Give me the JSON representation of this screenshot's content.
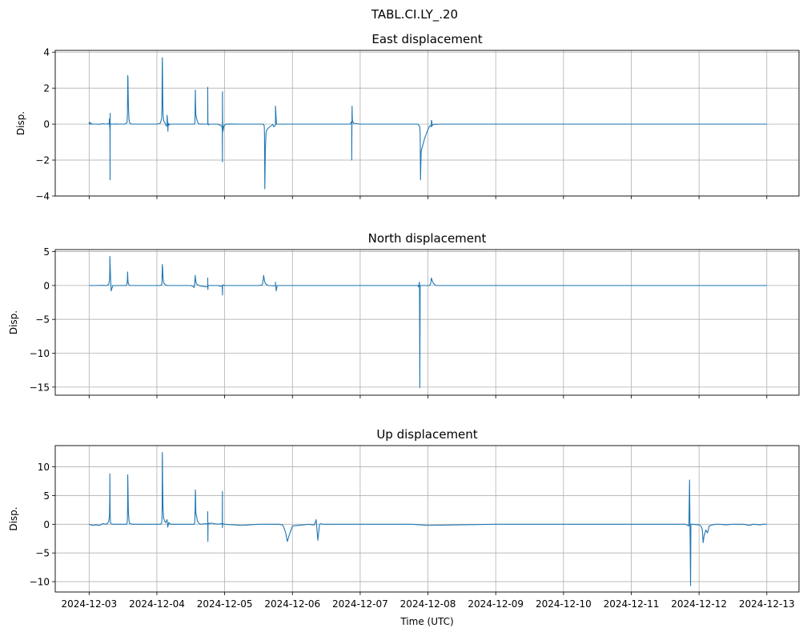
{
  "figure": {
    "suptitle": "TABL.CI.LY_.20"
  },
  "colors": {
    "line": "#1f77b4",
    "grid": "#b0b0b0",
    "axes": "#000000"
  },
  "chart_data": [
    {
      "type": "line",
      "title": "East displacement",
      "ylabel": "Disp.",
      "xlabel": "",
      "ylim": [
        -4,
        4.1
      ],
      "yticks": [
        -4,
        -2,
        0,
        2,
        4
      ],
      "ytick_labels": [
        "−4",
        "−2",
        "0",
        "2",
        "4"
      ],
      "grid": true,
      "series": [
        {
          "x": [
            0,
            0.003,
            0.012,
            0.022,
            0.036,
            0.04,
            0.05,
            0.06,
            0.062,
            0.065,
            0.068,
            0.07,
            0.08,
            0.09,
            0.1,
            0.2,
            0.3,
            0.4,
            0.5,
            0.55,
            0.59,
            0.6,
            0.605,
            0.612,
            0.615,
            0.618,
            0.62,
            0.622,
            0.625,
            0.628,
            0.632,
            0.64,
            0.65,
            0.7,
            0.8,
            0.9,
            1.0,
            1.05,
            1.1,
            1.12,
            1.13,
            1.135,
            1.14,
            1.145,
            1.15,
            1.16,
            1.175,
            1.19,
            1.21,
            1.25,
            1.3,
            1.5,
            1.8,
            2.0,
            2.1,
            2.14,
            2.15,
            2.155,
            2.16,
            2.165,
            2.17,
            2.18,
            2.2,
            2.22,
            2.25,
            2.27,
            2.3,
            2.3,
            2.31,
            2.32,
            2.325,
            2.33,
            2.34,
            2.36,
            2.38,
            2.4,
            2.5,
            3.0,
            3.1,
            3.12,
            3.125,
            3.13,
            3.135,
            3.14,
            3.15,
            3.2,
            3.25,
            3.3,
            3.4,
            3.45,
            3.5,
            3.5,
            3.505,
            3.51,
            3.52,
            3.55,
            3.6,
            3.8,
            3.85,
            3.87,
            3.88,
            3.9,
            3.92,
            3.93,
            3.935,
            3.935,
            3.94,
            3.95,
            3.98,
            4.0,
            4.05,
            4.1,
            4.5,
            5.0,
            5.1,
            5.15,
            5.16,
            5.17,
            5.175,
            5.18,
            5.185,
            5.19,
            5.2,
            5.22,
            5.25,
            5.3,
            5.4,
            5.42,
            5.45,
            5.5,
            5.5,
            5.53,
            5.6,
            6.0,
            6.5,
            6.8,
            7.0,
            7.5,
            7.7,
            7.75,
            7.75,
            7.76,
            7.77,
            7.8,
            8.0,
            8.5,
            9.0,
            9.6,
            9.7,
            9.72,
            9.75,
            9.76,
            9.77,
            9.78,
            9.8,
            9.9,
            10.0,
            10.05,
            10.08,
            10.1,
            10.1,
            10.11,
            10.12,
            10.13,
            10.15,
            10.18,
            10.2,
            10.22,
            10.25,
            10.3,
            10.35,
            10.4,
            10.5,
            10.6,
            10.8,
            11.0,
            11.5,
            12.0,
            12.5,
            13.0,
            13.5,
            14.0,
            14.5,
            15.0,
            15.5,
            16.0,
            17.0,
            18.0,
            18.5,
            19.0,
            19.5,
            19.6,
            19.7,
            19.8,
            19.85,
            19.9,
            19.95,
            20.0,
            20.0
          ],
          "y": [
            0,
            0.08,
            0.05,
            0.1,
            0.04,
            -0.02,
            0.03,
            0.05,
            0.02,
            0.01,
            0.02,
            0.01,
            0,
            0.01,
            0,
            0,
            -0.01,
            0.02,
            0,
            0.02,
            0,
            0.3,
            -0.1,
            -0.2,
            -0.4,
            -3.1,
            0.6,
            -0.3,
            0,
            -0.02,
            0,
            0.01,
            0,
            0,
            0.01,
            0,
            0,
            0,
            0.05,
            0.1,
            0.6,
            1.6,
            2.7,
            2.6,
            2,
            1,
            0.3,
            0.1,
            0.04,
            0,
            0,
            0,
            0,
            0,
            0.05,
            0.3,
            1,
            2.5,
            3.7,
            3.4,
            2,
            0.6,
            0.2,
            0.1,
            0.05,
            -0.1,
            -0.1,
            0.5,
            0.3,
            -0.1,
            -0.4,
            -0.1,
            0.05,
            -0.05,
            -0.02,
            0,
            0,
            0,
            0,
            0.05,
            0.3,
            1.2,
            1.9,
            1.3,
            0.5,
            0.1,
            0,
            0.01,
            0,
            0,
            0,
            2.05,
            0.2,
            0,
            -0.05,
            0,
            0,
            0,
            -0.05,
            -0.05,
            -0.08,
            -0.1,
            -0.15,
            -0.3,
            -2.1,
            1.8,
            0.3,
            -0.4,
            -0.1,
            -0.05,
            0,
            0.01,
            0,
            0,
            0,
            -0.02,
            -0.05,
            -0.15,
            -0.5,
            -2,
            -3.6,
            -3,
            -1.5,
            -0.5,
            -0.3,
            -0.2,
            -0.05,
            -0.02,
            -0.15,
            -0.08,
            1,
            0,
            0,
            0,
            0,
            0,
            0,
            0,
            0,
            0.15,
            -2,
            1,
            0.2,
            0.05,
            0,
            0,
            0,
            0,
            0,
            -0.05,
            -0.1,
            -0.2,
            -0.5,
            -3.1,
            -1.5,
            -0.8,
            -0.3,
            -0.1,
            -0.1,
            -0.15,
            0.2,
            0.2,
            -0.1,
            -0.05,
            -0.03,
            -0.02,
            0,
            0,
            -0.02,
            0,
            0,
            0,
            0,
            0,
            0,
            0,
            0,
            0,
            0,
            0,
            0,
            0,
            0,
            0,
            0,
            0,
            0,
            0,
            0,
            0,
            0,
            0,
            0,
            0,
            0,
            0,
            0,
            0,
            0
          ]
        }
      ]
    },
    {
      "type": "line",
      "title": "North displacement",
      "ylabel": "Disp.",
      "xlabel": "",
      "ylim": [
        -16.2,
        5.3
      ],
      "yticks": [
        -15,
        -10,
        -5,
        0,
        5
      ],
      "ytick_labels": [
        "−15",
        "−10",
        "−5",
        "0",
        "5"
      ],
      "grid": true,
      "series": [
        {
          "x": [
            0,
            0.2,
            0.4,
            0.5,
            0.55,
            0.58,
            0.6,
            0.605,
            0.61,
            0.612,
            0.615,
            0.62,
            0.63,
            0.65,
            0.7,
            0.8,
            1.0,
            1.1,
            1.12,
            1.13,
            1.135,
            1.14,
            1.145,
            1.15,
            1.16,
            1.18,
            1.2,
            1.3,
            1.5,
            2.0,
            2.1,
            2.14,
            2.15,
            2.155,
            2.16,
            2.17,
            2.18,
            2.2,
            2.25,
            2.3,
            2.5,
            3.0,
            3.05,
            3.08,
            3.1,
            3.12,
            3.13,
            3.14,
            3.16,
            3.2,
            3.25,
            3.3,
            3.5,
            3.5,
            3.505,
            3.51,
            3.52,
            3.6,
            3.8,
            3.85,
            3.9,
            3.92,
            3.93,
            3.935,
            3.94,
            3.95,
            4.0,
            4.5,
            5.0,
            5.1,
            5.12,
            5.14,
            5.15,
            5.16,
            5.18,
            5.2,
            5.25,
            5.3,
            5.45,
            5.5,
            5.5,
            5.52,
            5.55,
            6.0,
            7.0,
            7.5,
            8.5,
            9.5,
            9.6,
            9.7,
            9.72,
            9.75,
            9.76,
            9.77,
            9.78,
            9.8,
            10.0,
            10.05,
            10.08,
            10.1,
            10.12,
            10.15,
            10.2,
            10.25,
            10.3,
            10.4,
            10.5,
            11.0,
            12.0,
            14.0,
            16.0,
            18.0,
            19.0,
            19.5,
            19.6,
            19.7,
            19.8,
            19.9,
            20.0
          ],
          "y": [
            0,
            0,
            0.02,
            0,
            0.05,
            0.2,
            0.8,
            1.2,
            2.5,
            4.3,
            4,
            3,
            1.5,
            -0.8,
            0,
            0,
            0,
            0,
            0.3,
            1,
            2,
            1.5,
            0.8,
            0.5,
            0.3,
            0.05,
            0,
            0,
            0,
            0,
            0,
            0.1,
            0.5,
            2,
            3.1,
            2.5,
            1.2,
            0.4,
            0.1,
            0,
            0,
            0,
            -0.1,
            -0.2,
            -0.3,
            0.5,
            1.5,
            1,
            0.3,
            0.1,
            0,
            -0.1,
            -0.2,
            1.1,
            -0.6,
            0,
            0,
            0,
            0,
            -0.1,
            -0.05,
            -0.1,
            -0.2,
            -1.4,
            0,
            0.1,
            0,
            0,
            0,
            0.05,
            0.3,
            1,
            1.5,
            1.2,
            0.6,
            0.3,
            0.1,
            0,
            -0.05,
            0,
            0.5,
            -0.8,
            0,
            0,
            0,
            0,
            0,
            0,
            0,
            0,
            -0.2,
            0.5,
            -15.1,
            0,
            0,
            0,
            0,
            0,
            0.3,
            1.1,
            0.8,
            0.4,
            0.1,
            0,
            0,
            0,
            0,
            0,
            0,
            0,
            0,
            0,
            0,
            0,
            0,
            0,
            0,
            0,
            0
          ]
        }
      ]
    },
    {
      "type": "line",
      "title": "Up displacement",
      "ylabel": "Disp.",
      "xlabel": "Time (UTC)",
      "ylim": [
        -11.8,
        13.7
      ],
      "yticks": [
        -10,
        -5,
        0,
        5,
        10
      ],
      "ytick_labels": [
        "−10",
        "−5",
        "0",
        "5",
        "10"
      ],
      "xlim_days": [
        -1,
        20.95
      ],
      "xticks_days": [
        0,
        2,
        4,
        6,
        8,
        10,
        12,
        14,
        16,
        18,
        20
      ],
      "xtick_labels": [
        "2024-12-03",
        "2024-12-04",
        "2024-12-05",
        "2024-12-06",
        "2024-12-07",
        "2024-12-08",
        "2024-12-09",
        "2024-12-10",
        "2024-12-11",
        "2024-12-12",
        "2024-12-13"
      ],
      "grid": true,
      "series": [
        {
          "x": [
            0,
            0.1,
            0.2,
            0.3,
            0.4,
            0.5,
            0.55,
            0.58,
            0.6,
            0.61,
            0.612,
            0.615,
            0.618,
            0.62,
            0.625,
            0.63,
            0.65,
            0.7,
            0.8,
            1.0,
            1.1,
            1.12,
            1.13,
            1.135,
            1.14,
            1.145,
            1.15,
            1.16,
            1.18,
            1.2,
            1.3,
            1.5,
            2.0,
            2.1,
            2.14,
            2.15,
            2.155,
            2.16,
            2.165,
            2.17,
            2.18,
            2.2,
            2.25,
            2.28,
            2.3,
            2.32,
            2.35,
            2.4,
            2.5,
            3.0,
            3.1,
            3.12,
            3.13,
            3.135,
            3.14,
            3.15,
            3.2,
            3.25,
            3.3,
            3.45,
            3.5,
            3.5,
            3.505,
            3.51,
            3.52,
            3.55,
            3.6,
            3.8,
            3.9,
            3.93,
            3.935,
            3.935,
            3.94,
            3.95,
            4.0,
            4.5,
            5.0,
            5.5,
            5.6,
            5.7,
            5.72,
            5.75,
            5.8,
            5.85,
            5.9,
            6.0,
            6.5,
            6.6,
            6.65,
            6.7,
            6.75,
            6.8,
            6.85,
            6.9,
            6.95,
            7.0,
            7.5,
            9.5,
            10.0,
            12.0,
            14.0,
            15.0,
            15.5,
            16.0,
            16.5,
            17.0,
            17.5,
            17.6,
            17.7,
            17.72,
            17.75,
            17.76,
            17.77,
            17.78,
            17.8,
            18.0,
            18.05,
            18.08,
            18.1,
            18.12,
            18.15,
            18.2,
            18.25,
            18.3,
            18.4,
            18.5,
            18.6,
            18.8,
            19.0,
            19.3,
            19.5,
            19.6,
            19.8,
            19.9,
            20.0
          ],
          "y": [
            0,
            -0.2,
            -0.1,
            -0.2,
            0.1,
            0,
            0.2,
            0.5,
            1.5,
            5,
            8.8,
            6,
            4,
            2,
            1,
            0.3,
            0.1,
            0,
            0,
            0,
            0,
            0.2,
            1,
            3,
            8.6,
            7,
            5,
            2,
            0.5,
            0.1,
            0,
            0,
            0,
            0,
            0.2,
            1,
            3,
            12.5,
            11,
            7,
            3,
            1,
            0.3,
            0.5,
            0.8,
            -0.5,
            0.3,
            0,
            0,
            0,
            0,
            0.5,
            3,
            6,
            5.5,
            2,
            0.5,
            0.1,
            0,
            0.1,
            0,
            2.2,
            -3,
            0,
            0.2,
            0.1,
            0.2,
            0,
            0.1,
            0,
            5.7,
            -0.6,
            0,
            0.1,
            0,
            -0.2,
            0,
            0,
            0,
            -0.1,
            -0.2,
            -0.6,
            -1.5,
            -3,
            -2,
            -0.3,
            0,
            -0.1,
            -0.1,
            0.8,
            -2.8,
            0,
            0.1,
            0,
            0,
            0,
            0,
            0,
            -0.2,
            0,
            0,
            0,
            0,
            0,
            0,
            0,
            0,
            0,
            -0.3,
            7.7,
            -10.7,
            0,
            0,
            0,
            0,
            -0.1,
            -0.3,
            -0.6,
            -1.2,
            -3.2,
            -2,
            -1,
            -1.5,
            -0.3,
            -0.1,
            0,
            0,
            -0.1,
            0,
            0,
            -0.2,
            0,
            -0.1,
            0,
            0
          ]
        }
      ]
    }
  ]
}
